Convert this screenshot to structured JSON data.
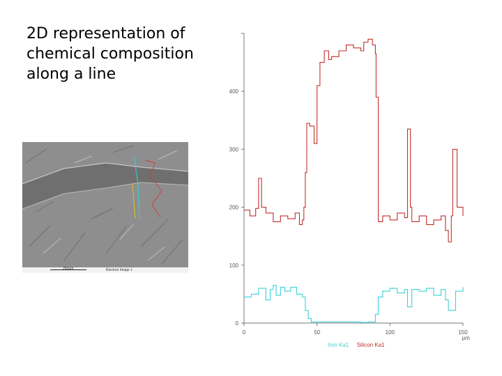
{
  "slide": {
    "title": "2D representation of chemical composition along a line"
  },
  "micrograph": {
    "scale_label": "250µm",
    "detector_label": "Electron Image 1"
  },
  "chart_data": {
    "type": "line",
    "xlim": [
      0,
      150
    ],
    "ylim": [
      0,
      500
    ],
    "x_ticks": [
      0,
      50,
      100,
      150
    ],
    "x_tick_labels": [
      "0",
      "50",
      "100",
      "150"
    ],
    "y_ticks": [
      0,
      100,
      200,
      300,
      400,
      500
    ],
    "y_tick_labels": [
      "0",
      "100",
      "200",
      "300",
      "400",
      ""
    ],
    "x_unit": "µm",
    "grid": false,
    "legend_position": "bottom",
    "series": [
      {
        "name": "Iron Ka1",
        "color": "#3ecfd6",
        "x": [
          0,
          5,
          10,
          15,
          18,
          20,
          22,
          25,
          28,
          32,
          36,
          40,
          42,
          44,
          46,
          50,
          60,
          70,
          80,
          85,
          88,
          90,
          92,
          95,
          100,
          105,
          110,
          112,
          115,
          120,
          125,
          130,
          135,
          138,
          140,
          145,
          150
        ],
        "y": [
          45,
          50,
          60,
          40,
          58,
          65,
          48,
          62,
          55,
          62,
          50,
          45,
          22,
          8,
          2,
          2,
          2,
          2,
          1,
          2,
          2,
          15,
          45,
          55,
          60,
          52,
          58,
          28,
          58,
          55,
          60,
          48,
          58,
          40,
          22,
          55,
          62
        ]
      },
      {
        "name": "Silicon Ka1",
        "color": "#c0302c",
        "x": [
          0,
          4,
          8,
          10,
          12,
          15,
          20,
          25,
          30,
          35,
          38,
          40,
          41,
          42,
          43,
          45,
          48,
          50,
          52,
          55,
          58,
          60,
          65,
          70,
          75,
          80,
          82,
          85,
          88,
          90,
          90.5,
          92,
          95,
          100,
          105,
          110,
          112,
          114,
          115,
          120,
          125,
          130,
          135,
          138,
          140,
          142,
          143,
          146,
          150
        ],
        "y": [
          195,
          185,
          198,
          250,
          200,
          190,
          175,
          185,
          180,
          190,
          170,
          178,
          200,
          260,
          345,
          340,
          310,
          410,
          450,
          470,
          455,
          460,
          470,
          480,
          475,
          470,
          485,
          490,
          480,
          465,
          390,
          175,
          185,
          178,
          190,
          182,
          335,
          200,
          175,
          185,
          170,
          178,
          185,
          160,
          140,
          185,
          300,
          200,
          185
        ]
      }
    ]
  }
}
